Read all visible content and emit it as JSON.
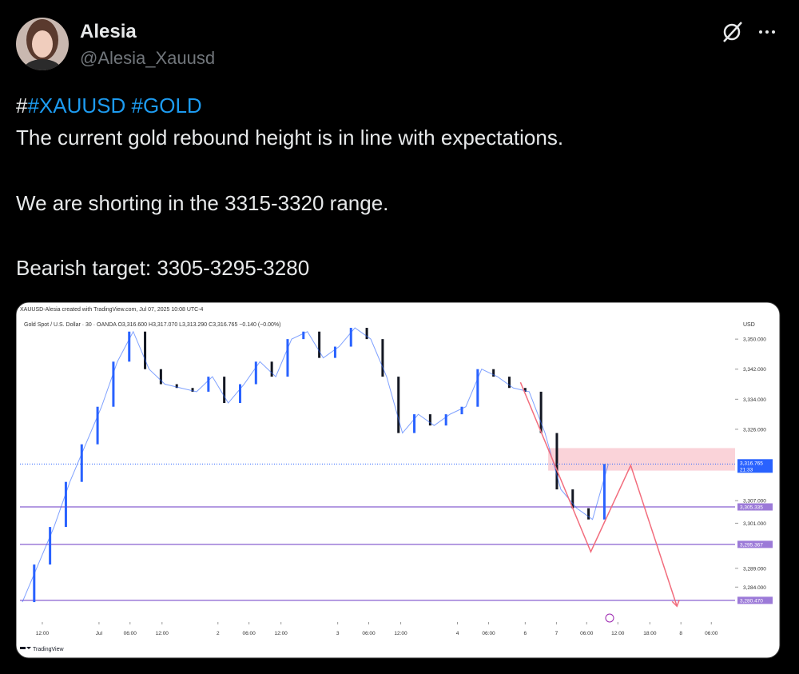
{
  "tweet": {
    "author": {
      "name": "Alesia",
      "handle": "@Alesia_Xauusd"
    },
    "text": {
      "prefix": "#",
      "hashtags": [
        "#XAUUSD",
        "#GOLD"
      ],
      "lines": [
        "The current gold rebound height is in line with expectations.",
        "We are shorting in the 3315-3320 range.",
        "Bearish target: 3305-3295-3280"
      ]
    }
  },
  "chart_data": {
    "type": "line",
    "title": "XAUUSD-Alesia created with TradingView.com, Jul 07, 2025 10:08 UTC-4",
    "subtitle": "Gold Spot / U.S. Dollar · 30 · OANDA  O3,316.600 H3,317.070 L3,313.290 C3,316.765 −0.140 (−0.00%)",
    "currency": "USD",
    "brand": "TradingView",
    "color": "#2962ff",
    "values": [
      3280,
      3290,
      3300,
      3312,
      3322,
      3332,
      3344,
      3352,
      3342,
      3338,
      3337,
      3336,
      3340,
      3333,
      3338,
      3344,
      3340,
      3350,
      3352,
      3345,
      3348,
      3353,
      3350,
      3340,
      3325,
      3330,
      3327,
      3330,
      3332,
      3342,
      3340,
      3337,
      3336,
      3325,
      3310,
      3305,
      3302,
      3316.765
    ],
    "xlim": [
      -0.15,
      45
    ],
    "xticks": [
      {
        "value": 1.26,
        "label": "12:00"
      },
      {
        "value": 4.84,
        "label": "Jul"
      },
      {
        "value": 6.8,
        "label": "06:00"
      },
      {
        "value": 8.82,
        "label": "12:00"
      },
      {
        "value": 12.35,
        "label": "2"
      },
      {
        "value": 14.31,
        "label": "06:00"
      },
      {
        "value": 16.33,
        "label": "12:00"
      },
      {
        "value": 19.91,
        "label": "3"
      },
      {
        "value": 21.87,
        "label": "06:00"
      },
      {
        "value": 23.89,
        "label": "12:00"
      },
      {
        "value": 27.47,
        "label": "4"
      },
      {
        "value": 29.44,
        "label": "06:00"
      },
      {
        "value": 31.75,
        "label": "6"
      },
      {
        "value": 33.72,
        "label": "7"
      },
      {
        "value": 35.63,
        "label": "06:00"
      },
      {
        "value": 37.6,
        "label": "12:00"
      },
      {
        "value": 39.62,
        "label": "18:00"
      },
      {
        "value": 41.58,
        "label": "8"
      },
      {
        "value": 43.5,
        "label": "06:00"
      }
    ],
    "ylim": [
      3276.4,
      3356.2
    ],
    "yticks": [
      {
        "value": 3350,
        "label": "3,350.000"
      },
      {
        "value": 3342,
        "label": "3,342.000"
      },
      {
        "value": 3334,
        "label": "3,334.000"
      },
      {
        "value": 3326,
        "label": "3,326.000"
      },
      {
        "value": 3307,
        "label": "3,307.000"
      },
      {
        "value": 3301,
        "label": "3,301.000"
      },
      {
        "value": 3289,
        "label": "3,289.000"
      },
      {
        "value": 3284,
        "label": "3,284.000"
      }
    ],
    "levels": [
      {
        "value": 3305.335,
        "label": "3,305.335"
      },
      {
        "value": 3295.367,
        "label": "3,295.367"
      },
      {
        "value": 3280.47,
        "label": "3,280.470"
      }
    ],
    "level_color": "#9c7ad8",
    "current": {
      "value": 3316.765,
      "label": "3,316.765",
      "countdown": "21:33"
    },
    "zone": {
      "from": 3315,
      "to": 3321,
      "x_start": 33.2,
      "color": "#f9c8cf"
    },
    "projection": {
      "color": "#f26d7d",
      "x": [
        31.45,
        35.89,
        38.41,
        41.33
      ],
      "y": [
        3338.5,
        3293.4,
        3316.4,
        3278.9
      ]
    }
  }
}
